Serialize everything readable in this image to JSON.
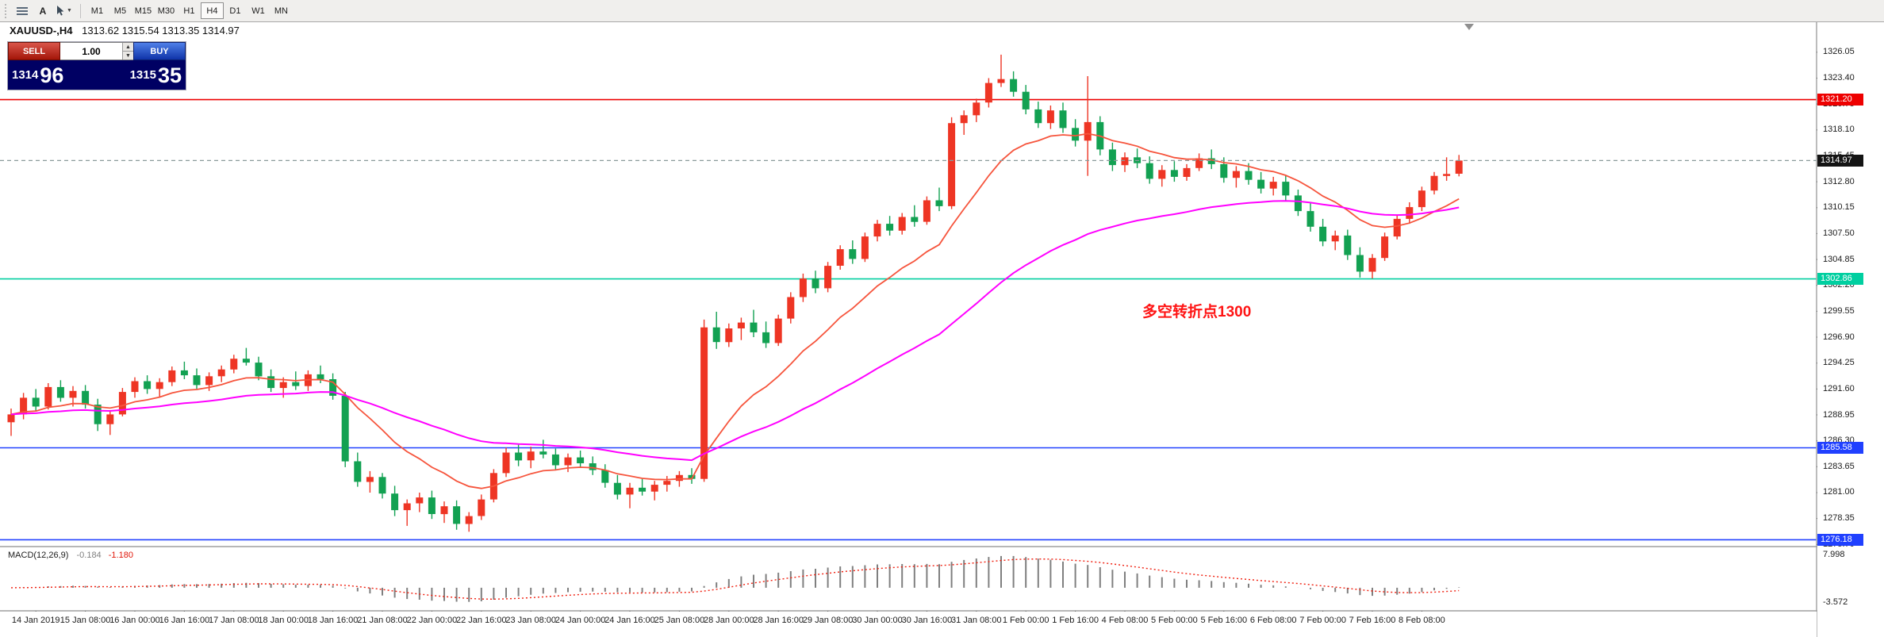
{
  "toolbar": {
    "text_tool_label": "A",
    "timeframes": [
      "M1",
      "M5",
      "M15",
      "M30",
      "H1",
      "H4",
      "D1",
      "W1",
      "MN"
    ],
    "active_timeframe": "H4"
  },
  "chart_header": {
    "symbol": "XAUUSD-,H4",
    "ohlc": "1313.62 1315.54 1313.35 1314.97"
  },
  "trade_panel": {
    "sell_label": "SELL",
    "buy_label": "BUY",
    "lot_size": "1.00",
    "sell_price_whole": "1314",
    "sell_price_pips": "96",
    "buy_price_whole": "1315",
    "buy_price_pips": "35"
  },
  "annotation": {
    "text": "多空转折点1300",
    "color": "#ff1414"
  },
  "price_axis": {
    "tick_labels": [
      "1326.05",
      "1323.40",
      "1320.75",
      "1318.10",
      "1315.45",
      "1312.80",
      "1310.15",
      "1307.50",
      "1304.85",
      "1302.20",
      "1299.55",
      "1296.90",
      "1294.25",
      "1291.60",
      "1288.95",
      "1286.30",
      "1283.65",
      "1281.00",
      "1278.35",
      "1275.70"
    ],
    "tags": [
      {
        "text": "1321.20",
        "price": 1321.2,
        "color": "#ee0000",
        "name": "resistance-tag"
      },
      {
        "text": "1314.97",
        "price": 1314.97,
        "color": "#141414",
        "name": "bid-price-tag"
      },
      {
        "text": "1302.86",
        "price": 1302.86,
        "color": "#00cfa0",
        "name": "pivot-tag"
      },
      {
        "text": "1285.58",
        "price": 1285.58,
        "color": "#2040ff",
        "name": "support-tag"
      },
      {
        "text": "1276.18",
        "price": 1276.18,
        "color": "#2040ff",
        "name": "support-tag-2"
      }
    ]
  },
  "time_axis": {
    "labels": [
      "14 Jan 2019",
      "15 Jan 08:00",
      "16 Jan 00:00",
      "16 Jan 16:00",
      "17 Jan 08:00",
      "18 Jan 00:00",
      "18 Jan 16:00",
      "21 Jan 08:00",
      "22 Jan 00:00",
      "22 Jan 16:00",
      "23 Jan 08:00",
      "24 Jan 00:00",
      "24 Jan 16:00",
      "25 Jan 08:00",
      "28 Jan 00:00",
      "28 Jan 16:00",
      "29 Jan 08:00",
      "30 Jan 00:00",
      "30 Jan 16:00",
      "31 Jan 08:00",
      "1 Feb 00:00",
      "1 Feb 16:00",
      "4 Feb 08:00",
      "5 Feb 00:00",
      "5 Feb 16:00",
      "6 Feb 08:00",
      "7 Feb 00:00",
      "7 Feb 16:00",
      "8 Feb 08:00"
    ]
  },
  "macd_panel": {
    "title": "MACD(12,26,9)",
    "value_macd": "-0.184",
    "value_signal": "-1.180",
    "axis_labels": [
      {
        "text": "7.998",
        "value": 7.998
      },
      {
        "text": "-3.572",
        "value": -3.572
      }
    ]
  },
  "chart_data": {
    "type": "candlestick",
    "symbol": "XAUUSD-",
    "timeframe": "H4",
    "ylim": [
      1275.48,
      1329.12
    ],
    "price_tick_step": 2.65,
    "candle_colors": {
      "up": "#ee3524",
      "down": "#12a152"
    },
    "overlays": [
      {
        "name": "fast-ma",
        "method": "ema",
        "period": 12,
        "color": "#f6543c"
      },
      {
        "name": "slow-ma",
        "method": "ema",
        "period": 40,
        "color": "#ff00ff"
      }
    ],
    "hlines": [
      {
        "price": 1321.2,
        "color": "#ee0000"
      },
      {
        "price": 1302.86,
        "color": "#00cfa0"
      },
      {
        "price": 1285.58,
        "color": "#2040ff"
      },
      {
        "price": 1276.18,
        "color": "#2040ff"
      }
    ],
    "bid_line": {
      "price": 1314.97,
      "color": "#8a9a9a",
      "style": "dashed"
    },
    "indicator": {
      "type": "MACD",
      "fast": 12,
      "slow": 26,
      "signal": 9,
      "ylim": [
        -5.6,
        10.0
      ],
      "histogram_color": "#7f7f7f",
      "signal_color": "#f02010"
    },
    "candles_ohlc": [
      [
        1288.2,
        1289.6,
        1286.8,
        1289.0
      ],
      [
        1289.0,
        1291.2,
        1288.5,
        1290.7
      ],
      [
        1290.7,
        1291.6,
        1289.3,
        1289.8
      ],
      [
        1289.8,
        1292.2,
        1289.5,
        1291.8
      ],
      [
        1291.8,
        1292.5,
        1290.3,
        1290.7
      ],
      [
        1290.7,
        1291.9,
        1289.8,
        1291.4
      ],
      [
        1291.4,
        1292.0,
        1289.6,
        1290.0
      ],
      [
        1290.0,
        1290.6,
        1287.3,
        1288.0
      ],
      [
        1288.0,
        1289.4,
        1286.9,
        1289.0
      ],
      [
        1289.0,
        1291.7,
        1288.8,
        1291.3
      ],
      [
        1291.3,
        1292.8,
        1290.7,
        1292.4
      ],
      [
        1292.4,
        1293.0,
        1291.1,
        1291.6
      ],
      [
        1291.6,
        1292.7,
        1290.8,
        1292.3
      ],
      [
        1292.3,
        1293.9,
        1291.9,
        1293.5
      ],
      [
        1293.5,
        1294.4,
        1292.6,
        1293.0
      ],
      [
        1293.0,
        1293.7,
        1291.6,
        1292.0
      ],
      [
        1292.0,
        1293.3,
        1291.4,
        1292.9
      ],
      [
        1292.9,
        1294.0,
        1292.3,
        1293.6
      ],
      [
        1293.6,
        1295.1,
        1293.2,
        1294.7
      ],
      [
        1294.7,
        1295.8,
        1294.0,
        1294.3
      ],
      [
        1294.3,
        1294.9,
        1292.5,
        1292.9
      ],
      [
        1292.9,
        1293.6,
        1291.3,
        1291.7
      ],
      [
        1291.7,
        1292.8,
        1290.7,
        1292.3
      ],
      [
        1292.3,
        1293.4,
        1291.5,
        1291.9
      ],
      [
        1291.9,
        1293.5,
        1291.4,
        1293.1
      ],
      [
        1293.1,
        1294.0,
        1292.2,
        1292.6
      ],
      [
        1292.6,
        1293.2,
        1290.5,
        1290.9
      ],
      [
        1290.9,
        1291.3,
        1283.6,
        1284.2
      ],
      [
        1284.2,
        1285.1,
        1281.6,
        1282.1
      ],
      [
        1282.1,
        1283.2,
        1281.0,
        1282.6
      ],
      [
        1282.6,
        1283.0,
        1280.4,
        1280.9
      ],
      [
        1280.9,
        1281.7,
        1278.6,
        1279.2
      ],
      [
        1279.2,
        1280.3,
        1277.6,
        1279.9
      ],
      [
        1279.9,
        1281.0,
        1279.0,
        1280.5
      ],
      [
        1280.5,
        1281.2,
        1278.3,
        1278.8
      ],
      [
        1278.8,
        1280.1,
        1277.9,
        1279.6
      ],
      [
        1279.6,
        1280.2,
        1277.2,
        1277.8
      ],
      [
        1277.8,
        1279.0,
        1277.0,
        1278.6
      ],
      [
        1278.6,
        1280.8,
        1278.2,
        1280.3
      ],
      [
        1280.3,
        1283.4,
        1280.0,
        1283.0
      ],
      [
        1283.0,
        1285.6,
        1282.6,
        1285.1
      ],
      [
        1285.1,
        1285.9,
        1283.7,
        1284.3
      ],
      [
        1284.3,
        1285.7,
        1283.5,
        1285.2
      ],
      [
        1285.2,
        1286.4,
        1284.5,
        1284.9
      ],
      [
        1284.9,
        1285.5,
        1283.3,
        1283.8
      ],
      [
        1283.8,
        1285.0,
        1283.1,
        1284.6
      ],
      [
        1284.6,
        1285.3,
        1283.6,
        1284.0
      ],
      [
        1284.0,
        1284.7,
        1282.8,
        1283.3
      ],
      [
        1283.3,
        1283.9,
        1281.5,
        1282.0
      ],
      [
        1282.0,
        1282.8,
        1280.3,
        1280.8
      ],
      [
        1280.8,
        1282.0,
        1279.4,
        1281.5
      ],
      [
        1281.5,
        1282.4,
        1280.7,
        1281.1
      ],
      [
        1281.1,
        1282.2,
        1280.2,
        1281.8
      ],
      [
        1281.8,
        1282.7,
        1281.1,
        1282.2
      ],
      [
        1282.2,
        1283.2,
        1281.6,
        1282.8
      ],
      [
        1282.8,
        1283.5,
        1281.9,
        1282.4
      ],
      [
        1282.4,
        1298.7,
        1282.1,
        1297.9
      ],
      [
        1297.9,
        1299.5,
        1295.7,
        1296.4
      ],
      [
        1296.4,
        1298.3,
        1295.9,
        1297.8
      ],
      [
        1297.8,
        1298.9,
        1296.6,
        1298.4
      ],
      [
        1298.4,
        1299.7,
        1296.9,
        1297.4
      ],
      [
        1297.4,
        1298.5,
        1295.8,
        1296.3
      ],
      [
        1296.3,
        1299.2,
        1296.0,
        1298.8
      ],
      [
        1298.8,
        1301.5,
        1298.3,
        1301.0
      ],
      [
        1301.0,
        1303.4,
        1300.5,
        1302.9
      ],
      [
        1302.9,
        1303.7,
        1301.4,
        1301.9
      ],
      [
        1301.9,
        1304.6,
        1301.5,
        1304.2
      ],
      [
        1304.2,
        1306.3,
        1303.8,
        1305.9
      ],
      [
        1305.9,
        1306.8,
        1304.4,
        1304.9
      ],
      [
        1304.9,
        1307.6,
        1304.6,
        1307.2
      ],
      [
        1307.2,
        1308.9,
        1306.7,
        1308.5
      ],
      [
        1308.5,
        1309.3,
        1307.3,
        1307.8
      ],
      [
        1307.8,
        1309.6,
        1307.4,
        1309.2
      ],
      [
        1309.2,
        1310.4,
        1308.2,
        1308.7
      ],
      [
        1308.7,
        1311.3,
        1308.4,
        1310.9
      ],
      [
        1310.9,
        1312.2,
        1309.8,
        1310.3
      ],
      [
        1310.3,
        1319.4,
        1310.0,
        1318.8
      ],
      [
        1318.8,
        1320.1,
        1317.6,
        1319.6
      ],
      [
        1319.6,
        1321.3,
        1318.9,
        1320.9
      ],
      [
        1320.9,
        1323.4,
        1320.4,
        1322.9
      ],
      [
        1322.9,
        1325.8,
        1322.5,
        1323.3
      ],
      [
        1323.3,
        1324.1,
        1321.5,
        1322.0
      ],
      [
        1322.0,
        1322.7,
        1319.7,
        1320.2
      ],
      [
        1320.2,
        1321.0,
        1318.3,
        1318.8
      ],
      [
        1318.8,
        1320.6,
        1318.2,
        1320.1
      ],
      [
        1320.1,
        1320.9,
        1317.8,
        1318.3
      ],
      [
        1318.3,
        1319.2,
        1316.4,
        1317.0
      ],
      [
        1317.0,
        1323.6,
        1313.4,
        1318.9
      ],
      [
        1318.9,
        1319.5,
        1315.5,
        1316.1
      ],
      [
        1316.1,
        1316.8,
        1313.9,
        1314.5
      ],
      [
        1314.5,
        1315.8,
        1313.8,
        1315.3
      ],
      [
        1315.3,
        1316.2,
        1314.2,
        1314.7
      ],
      [
        1314.7,
        1315.4,
        1312.6,
        1313.1
      ],
      [
        1313.1,
        1314.5,
        1312.3,
        1314.0
      ],
      [
        1314.0,
        1314.9,
        1312.8,
        1313.3
      ],
      [
        1313.3,
        1314.6,
        1312.9,
        1314.2
      ],
      [
        1314.2,
        1315.7,
        1313.9,
        1315.2
      ],
      [
        1315.2,
        1316.1,
        1314.1,
        1314.6
      ],
      [
        1314.6,
        1315.3,
        1312.7,
        1313.2
      ],
      [
        1313.2,
        1314.4,
        1312.2,
        1313.9
      ],
      [
        1313.9,
        1314.7,
        1312.5,
        1313.0
      ],
      [
        1313.0,
        1313.8,
        1311.6,
        1312.1
      ],
      [
        1312.1,
        1313.3,
        1311.4,
        1312.8
      ],
      [
        1312.8,
        1313.5,
        1310.9,
        1311.4
      ],
      [
        1311.4,
        1312.0,
        1309.3,
        1309.8
      ],
      [
        1309.8,
        1310.6,
        1307.7,
        1308.2
      ],
      [
        1308.2,
        1309.0,
        1306.2,
        1306.7
      ],
      [
        1306.7,
        1307.8,
        1305.8,
        1307.3
      ],
      [
        1307.3,
        1307.9,
        1304.8,
        1305.3
      ],
      [
        1305.3,
        1306.1,
        1303.0,
        1303.6
      ],
      [
        1303.6,
        1305.4,
        1302.9,
        1305.0
      ],
      [
        1305.0,
        1307.6,
        1304.7,
        1307.2
      ],
      [
        1307.2,
        1309.4,
        1306.9,
        1309.0
      ],
      [
        1309.0,
        1310.7,
        1308.5,
        1310.2
      ],
      [
        1310.2,
        1312.3,
        1309.8,
        1311.9
      ],
      [
        1311.9,
        1313.8,
        1311.5,
        1313.4
      ],
      [
        1313.4,
        1315.3,
        1312.9,
        1313.6
      ],
      [
        1313.62,
        1315.54,
        1313.35,
        1314.97
      ]
    ]
  }
}
